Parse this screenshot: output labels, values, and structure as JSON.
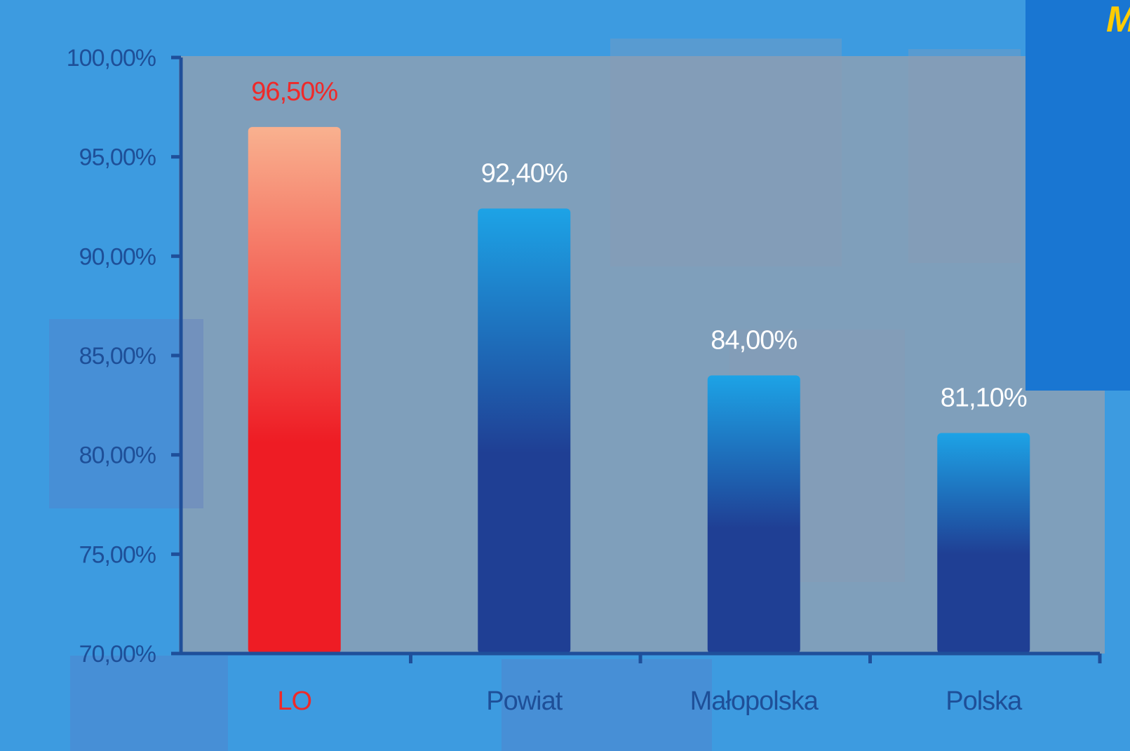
{
  "chart_data": {
    "type": "bar",
    "categories": [
      "LO",
      "Powiat",
      "Małopolska",
      "Polska"
    ],
    "values": [
      96.5,
      92.4,
      84.0,
      81.1
    ],
    "value_labels": [
      "96,50%",
      "92,40%",
      "84,00%",
      "81,10%"
    ],
    "y_ticks": [
      {
        "value": 100,
        "label": "100,00%"
      },
      {
        "value": 95,
        "label": "95,00%"
      },
      {
        "value": 90,
        "label": "90,00%"
      },
      {
        "value": 85,
        "label": "85,00%"
      },
      {
        "value": 80,
        "label": "80,00%"
      },
      {
        "value": 75,
        "label": "75,00%"
      },
      {
        "value": 70,
        "label": "70,00%"
      }
    ],
    "ylim": [
      70,
      100
    ],
    "grid": false,
    "highlight_category": "LO",
    "title": "",
    "xlabel": "",
    "ylabel": ""
  },
  "colors": {
    "outer_background": "#3d9be0",
    "plot_background": "#7f9fbb",
    "axis": "#1f4f9a",
    "tick_label": "#1e4f98",
    "bar_top": "#1da3e6",
    "bar_bottom": "#1f3f94",
    "highlight_top": "#f9b18f",
    "highlight_bottom": "#ee1c24",
    "highlight_label": "#ee2a2a",
    "value_label": "#ffffff",
    "corner_panel": "#1976d2",
    "corner_text": "#ffcc00"
  },
  "corner_fragment": "M"
}
